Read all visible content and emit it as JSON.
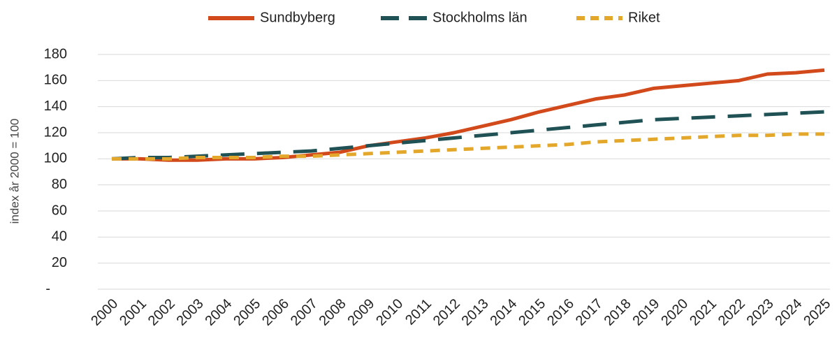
{
  "chart_data": {
    "type": "line",
    "y_axis_label": "index år 2000 = 100",
    "categories": [
      "2000",
      "2001",
      "2002",
      "2003",
      "2004",
      "2005",
      "2006",
      "2007",
      "2008",
      "2009",
      "2010",
      "2011",
      "2012",
      "2013",
      "2014",
      "2015",
      "2016",
      "2017",
      "2018",
      "2019",
      "2020",
      "2021",
      "2022",
      "2023",
      "2024",
      "2025"
    ],
    "series": [
      {
        "name": "Sundbyberg",
        "color": "#d24a1b",
        "dash": "solid",
        "values": [
          100,
          100,
          99,
          99,
          100,
          100,
          101,
          103,
          105,
          110,
          113,
          116,
          120,
          125,
          130,
          136,
          141,
          146,
          149,
          154,
          156,
          158,
          160,
          165,
          166,
          168
        ]
      },
      {
        "name": "Stockholms län",
        "color": "#1f5155",
        "dash": "long",
        "values": [
          100,
          101,
          101,
          102,
          103,
          104,
          105,
          106,
          108,
          110,
          112,
          114,
          116,
          118,
          120,
          122,
          124,
          126,
          128,
          130,
          131,
          132,
          133,
          134,
          135,
          136
        ]
      },
      {
        "name": "Riket",
        "color": "#e3a82b",
        "dash": "short",
        "values": [
          100,
          100,
          100,
          101,
          101,
          101,
          102,
          102,
          103,
          104,
          105,
          106,
          107,
          108,
          109,
          110,
          111,
          113,
          114,
          115,
          116,
          117,
          118,
          118,
          119,
          119
        ]
      }
    ],
    "ylim": [
      0,
      180
    ],
    "yticks": [
      {
        "value": 0,
        "label": "-"
      },
      20,
      40,
      60,
      80,
      100,
      120,
      140,
      160,
      180
    ],
    "grid": true,
    "legend": "top"
  }
}
